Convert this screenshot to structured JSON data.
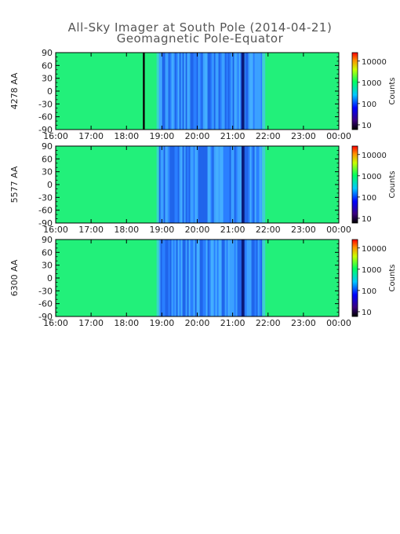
{
  "title": "All-Sky Imager at South Pole (2014-04-21)",
  "subtitle": "Geomagnetic Pole-Equator",
  "chart_data": [
    {
      "type": "heatmap",
      "panel_label": "4278 AA",
      "x_ticks": [
        "16:00",
        "17:00",
        "18:00",
        "19:00",
        "20:00",
        "21:00",
        "22:00",
        "23:00",
        "00:00"
      ],
      "y_ticks": [
        90,
        60,
        30,
        0,
        -30,
        -60,
        -90
      ],
      "ylim": [
        -90,
        90
      ],
      "xlim": [
        "16:00",
        "00:00"
      ],
      "colorbar": {
        "label": "Counts",
        "ticks": [
          "10",
          "100",
          "1000",
          "10000"
        ],
        "scale": "log"
      },
      "regions": [
        {
          "from": "16:00",
          "to": "18:28",
          "level": "green"
        },
        {
          "from": "18:28",
          "to": "18:31",
          "level": "black"
        },
        {
          "from": "18:31",
          "to": "18:55",
          "level": "green"
        },
        {
          "from": "18:55",
          "to": "21:50",
          "level": "blue"
        },
        {
          "from": "21:15",
          "to": "21:20",
          "level": "dark-blue"
        },
        {
          "from": "21:50",
          "to": "00:00",
          "level": "green"
        }
      ]
    },
    {
      "type": "heatmap",
      "panel_label": "5577 AA",
      "x_ticks": [
        "16:00",
        "17:00",
        "18:00",
        "19:00",
        "20:00",
        "21:00",
        "22:00",
        "23:00",
        "00:00"
      ],
      "y_ticks": [
        90,
        60,
        30,
        0,
        -30,
        -60,
        -90
      ],
      "ylim": [
        -90,
        90
      ],
      "xlim": [
        "16:00",
        "00:00"
      ],
      "colorbar": {
        "label": "Counts",
        "ticks": [
          "10",
          "100",
          "1000",
          "10000"
        ],
        "scale": "log"
      },
      "regions": [
        {
          "from": "16:00",
          "to": "18:55",
          "level": "green"
        },
        {
          "from": "18:55",
          "to": "21:50",
          "level": "blue"
        },
        {
          "from": "21:15",
          "to": "21:20",
          "level": "dark-blue"
        },
        {
          "from": "21:50",
          "to": "00:00",
          "level": "green"
        }
      ]
    },
    {
      "type": "heatmap",
      "panel_label": "6300 AA",
      "x_ticks": [
        "16:00",
        "17:00",
        "18:00",
        "19:00",
        "20:00",
        "21:00",
        "22:00",
        "23:00",
        "00:00"
      ],
      "y_ticks": [
        90,
        60,
        30,
        0,
        -30,
        -60,
        -90
      ],
      "ylim": [
        -90,
        90
      ],
      "xlim": [
        "16:00",
        "00:00"
      ],
      "colorbar": {
        "label": "Counts",
        "ticks": [
          "10",
          "100",
          "1000",
          "10000"
        ],
        "scale": "log"
      },
      "regions": [
        {
          "from": "16:00",
          "to": "18:55",
          "level": "green"
        },
        {
          "from": "18:55",
          "to": "21:50",
          "level": "blue"
        },
        {
          "from": "21:15",
          "to": "21:20",
          "level": "dark-blue"
        },
        {
          "from": "21:50",
          "to": "00:00",
          "level": "green"
        }
      ]
    }
  ],
  "colors": {
    "green": "#22f07a",
    "blue": "#2a7fff",
    "light_blue": "#3fa8ff",
    "dark_blue": "#0a1a7a",
    "black": "#000000"
  }
}
